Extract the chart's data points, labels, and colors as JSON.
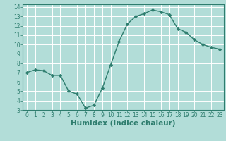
{
  "x": [
    0,
    1,
    2,
    3,
    4,
    5,
    6,
    7,
    8,
    9,
    10,
    11,
    12,
    13,
    14,
    15,
    16,
    17,
    18,
    19,
    20,
    21,
    22,
    23
  ],
  "y": [
    7.0,
    7.3,
    7.2,
    6.7,
    6.7,
    5.0,
    4.7,
    3.2,
    3.5,
    5.3,
    7.8,
    10.3,
    12.2,
    13.0,
    13.3,
    13.7,
    13.5,
    13.2,
    11.7,
    11.3,
    10.5,
    10.0,
    9.7,
    9.5
  ],
  "xlabel": "Humidex (Indice chaleur)",
  "ylim": [
    3,
    14
  ],
  "xlim": [
    -0.5,
    23.5
  ],
  "yticks": [
    3,
    4,
    5,
    6,
    7,
    8,
    9,
    10,
    11,
    12,
    13,
    14
  ],
  "xticks": [
    0,
    1,
    2,
    3,
    4,
    5,
    6,
    7,
    8,
    9,
    10,
    11,
    12,
    13,
    14,
    15,
    16,
    17,
    18,
    19,
    20,
    21,
    22,
    23
  ],
  "line_color": "#2e7d6e",
  "marker": "D",
  "marker_size": 2.2,
  "bg_color": "#b2ddd8",
  "grid_color": "#ffffff",
  "tick_label_fontsize": 5.5,
  "xlabel_fontsize": 7.5,
  "linewidth": 1.0
}
